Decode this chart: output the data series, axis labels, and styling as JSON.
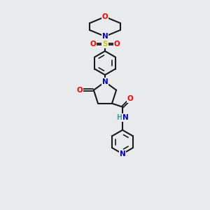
{
  "bg_color": "#e8eaec",
  "bond_color": "#1a1a1a",
  "atom_colors": {
    "O": "#ff0000",
    "N": "#0000cc",
    "S": "#cccc00",
    "H": "#4a9999",
    "C": "#1a1a1a"
  },
  "figsize": [
    3.0,
    3.0
  ],
  "dpi": 100
}
